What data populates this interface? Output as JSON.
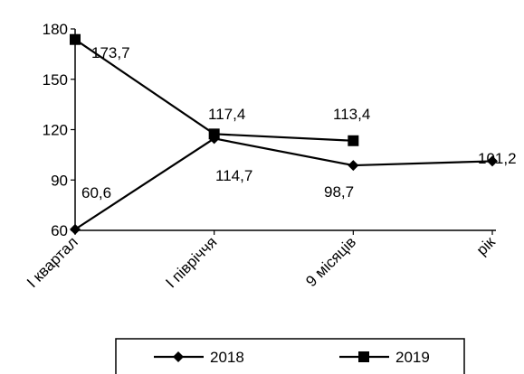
{
  "chart_data": {
    "type": "line",
    "categories": [
      "І квартал",
      "І півріччя",
      "9 місяців",
      "рік"
    ],
    "series": [
      {
        "name": "2018",
        "values": [
          60.6,
          114.7,
          98.7,
          101.2
        ],
        "labels": [
          "60,6",
          "114,7",
          "98,7",
          "101,2"
        ],
        "marker": "diamond"
      },
      {
        "name": "2019",
        "values": [
          173.7,
          117.4,
          113.4,
          null
        ],
        "labels": [
          "173,7",
          "117,4",
          "113,4",
          null
        ],
        "marker": "square"
      }
    ],
    "yticks": [
      "60",
      "90",
      "120",
      "150",
      "180"
    ],
    "ylim": [
      60,
      180
    ],
    "grid": false,
    "legend_position": "bottom",
    "colors": {
      "line": "#000000",
      "marker": "#000000"
    }
  }
}
